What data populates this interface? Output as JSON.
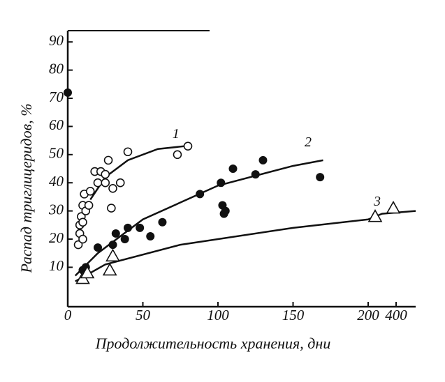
{
  "chart_data": {
    "type": "scatter",
    "ylabel": "Распад триглицеридов, %",
    "xlabel": "Продолжительность хранения,  дни",
    "xlim": [
      0,
      540
    ],
    "ylim": [
      -4,
      94
    ],
    "xticks": [
      0,
      50,
      100,
      150,
      200,
      400
    ],
    "yticks": [
      10,
      20,
      30,
      40,
      50,
      60,
      70,
      80,
      90
    ],
    "series": [
      {
        "name": "1",
        "marker": "open-circle",
        "color": "#111",
        "x": [
          7,
          8,
          8,
          9,
          10,
          10,
          10,
          11,
          12,
          14,
          15,
          18,
          20,
          22,
          25,
          25,
          27,
          29,
          30,
          35,
          40,
          73,
          80
        ],
        "values": [
          18,
          22,
          25,
          28,
          20,
          26,
          32,
          36,
          30,
          32,
          37,
          44,
          40,
          44,
          43,
          40,
          48,
          31,
          38,
          40,
          51,
          50,
          53
        ]
      },
      {
        "name": "2",
        "marker": "filled-circle",
        "color": "#111",
        "x": [
          0,
          10,
          12,
          20,
          30,
          32,
          38,
          40,
          48,
          55,
          63,
          88,
          102,
          103,
          104,
          105,
          110,
          125,
          130,
          168
        ],
        "values": [
          72,
          9,
          10,
          17,
          18,
          22,
          20,
          24,
          24,
          21,
          26,
          36,
          40,
          32,
          29,
          30,
          45,
          43,
          48,
          42
        ]
      },
      {
        "name": "3",
        "marker": "triangle",
        "color": "#111",
        "x": [
          10,
          13,
          28,
          30,
          250,
          380
        ],
        "values": [
          6,
          8,
          9,
          14,
          28,
          31
        ]
      }
    ],
    "curves": [
      {
        "name": "1",
        "label_x": 72,
        "label_y": 57,
        "x": [
          15,
          25,
          40,
          60,
          78
        ],
        "values": [
          34,
          42,
          48,
          52,
          53
        ]
      },
      {
        "name": "2",
        "label_x": 160,
        "label_y": 54,
        "x": [
          5,
          20,
          50,
          100,
          150,
          170
        ],
        "values": [
          7,
          15,
          27,
          39,
          46,
          48
        ]
      },
      {
        "name": "3",
        "label_x": 265,
        "label_y": 33,
        "x": [
          5,
          25,
          75,
          150,
          200,
          300,
          540
        ],
        "values": [
          5,
          11,
          18,
          24,
          27,
          29,
          30
        ]
      }
    ]
  }
}
